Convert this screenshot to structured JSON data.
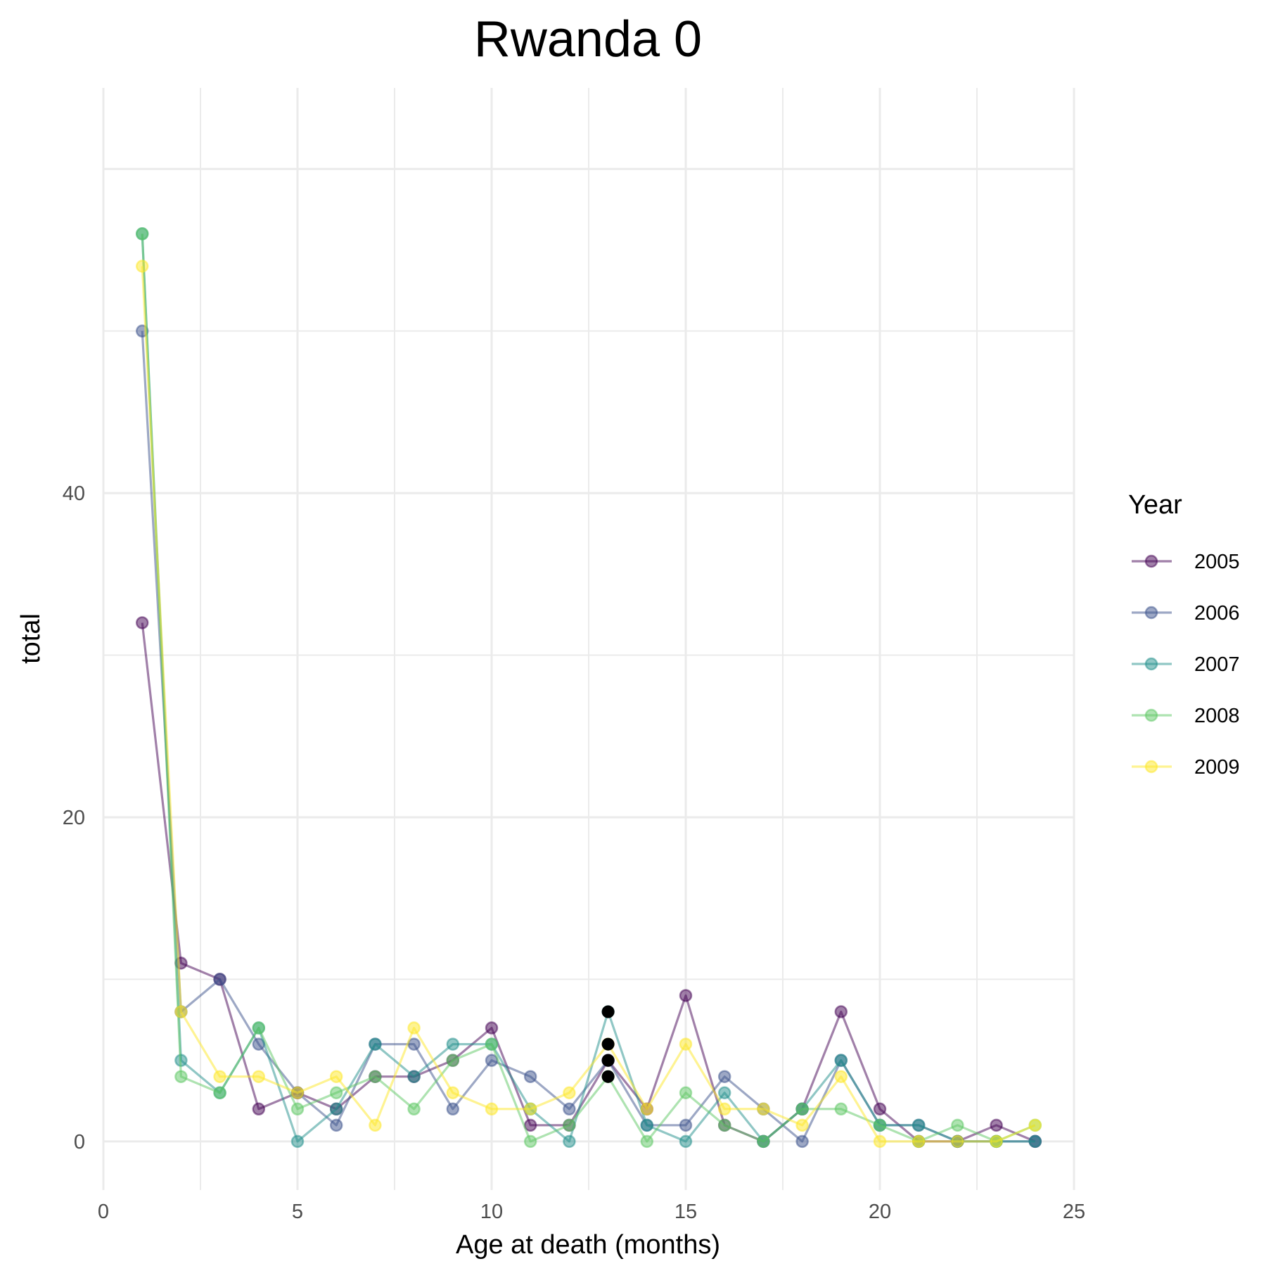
{
  "chart_data": {
    "type": "line",
    "title": "Rwanda 0",
    "xlabel": "Age at death (months)",
    "ylabel": "total",
    "xlim": [
      0,
      25
    ],
    "ylim": [
      -3,
      65
    ],
    "x_ticks": [
      0,
      5,
      10,
      15,
      20,
      25
    ],
    "y_ticks": [
      0,
      20,
      40
    ],
    "grid": true,
    "legend": {
      "title": "Year",
      "placement": "right"
    },
    "x": [
      1,
      2,
      3,
      4,
      5,
      6,
      7,
      8,
      9,
      10,
      11,
      12,
      13,
      14,
      15,
      16,
      17,
      18,
      19,
      20,
      21,
      22,
      23,
      24
    ],
    "series": [
      {
        "name": "2005",
        "color": "#440154",
        "values": [
          32,
          11,
          10,
          2,
          3,
          2,
          4,
          4,
          5,
          7,
          1,
          1,
          5,
          2,
          9,
          1,
          0,
          2,
          8,
          2,
          0,
          0,
          1,
          0
        ]
      },
      {
        "name": "2006",
        "color": "#3B528B",
        "values": [
          50,
          8,
          10,
          6,
          3,
          1,
          6,
          6,
          2,
          5,
          4,
          2,
          5,
          1,
          1,
          4,
          2,
          0,
          5,
          1,
          1,
          0,
          0,
          0
        ]
      },
      {
        "name": "2007",
        "color": "#21908C",
        "values": [
          56,
          5,
          3,
          7,
          0,
          2,
          6,
          4,
          6,
          6,
          2,
          0,
          8,
          1,
          0,
          3,
          0,
          2,
          5,
          1,
          1,
          0,
          0,
          0
        ]
      },
      {
        "name": "2008",
        "color": "#5DC863",
        "values": [
          56,
          4,
          3,
          7,
          2,
          3,
          4,
          2,
          5,
          6,
          0,
          1,
          4,
          0,
          3,
          1,
          0,
          2,
          2,
          1,
          0,
          1,
          0,
          1
        ]
      },
      {
        "name": "2009",
        "color": "#FDE725",
        "values": [
          54,
          8,
          4,
          4,
          3,
          4,
          1,
          7,
          3,
          2,
          2,
          3,
          6,
          2,
          6,
          2,
          2,
          1,
          4,
          0,
          0,
          0,
          0,
          1
        ]
      }
    ],
    "highlight_points": [
      {
        "x": 13,
        "y": 8
      },
      {
        "x": 13,
        "y": 6
      },
      {
        "x": 13,
        "y": 5
      },
      {
        "x": 13,
        "y": 4
      }
    ]
  }
}
